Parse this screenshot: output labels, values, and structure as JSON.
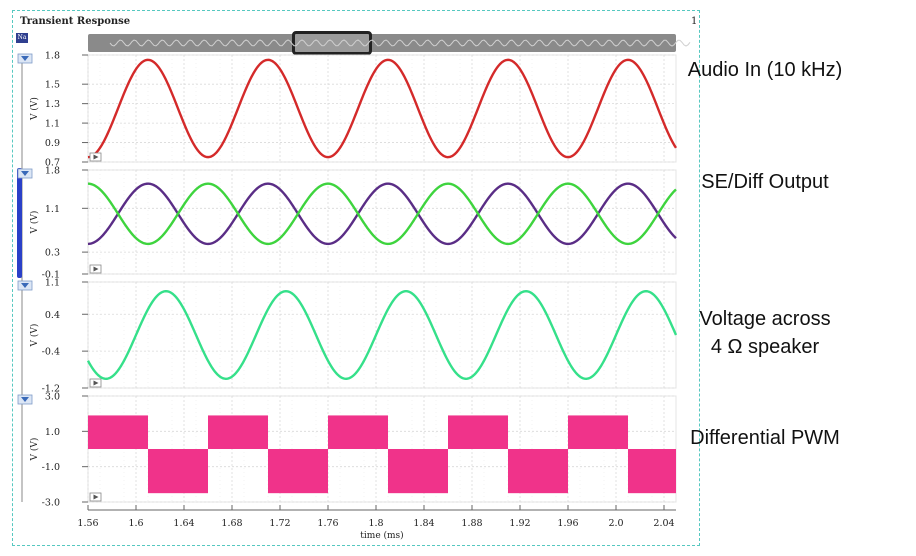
{
  "window": {
    "title": "Transient Response",
    "corner_label": "1",
    "signal_tag": "Na"
  },
  "colors": {
    "audio": "#d42a2a",
    "se_a": "#5a2d86",
    "se_b": "#3ed43e",
    "speaker": "#35e08a",
    "pwm": "#f0338a",
    "grid": "#d9d9d9",
    "scroll_thumb": "#2a40c8"
  },
  "labels": {
    "audio": "Audio In (10 kHz)",
    "se": "SE/Diff Output",
    "speaker_line1": "Voltage across",
    "speaker_line2": "4 Ω  speaker",
    "pwm": "Differential PWM"
  },
  "chart_data": [
    {
      "type": "line",
      "ylabel": "V (V)",
      "yticks": [
        "1.8",
        "1.5",
        "1.3",
        "1.1",
        "0.9",
        "0.7"
      ],
      "ylim": [
        0.7,
        1.8
      ],
      "series": [
        {
          "name": "Audio In (10 kHz)",
          "color_key": "audio",
          "offset": 1.25,
          "amplitude": 0.5,
          "period_ms": 0.1,
          "peak_ms": 1.61
        }
      ]
    },
    {
      "type": "line",
      "ylabel": "V (V)",
      "yticks": [
        "1.8",
        "1.1",
        "0.3",
        "-0.1"
      ],
      "ylim": [
        -0.1,
        1.8
      ],
      "series": [
        {
          "color_key": "se_a",
          "offset": 1.0,
          "amplitude": 0.55,
          "period_ms": 0.1,
          "peak_ms": 1.61
        },
        {
          "color_key": "se_b",
          "offset": 1.0,
          "amplitude": 0.55,
          "period_ms": 0.1,
          "peak_ms": 1.66
        }
      ]
    },
    {
      "type": "line",
      "ylabel": "V (V)",
      "yticks": [
        "1.1",
        "0.4",
        "-0.4",
        "-1.2"
      ],
      "ylim": [
        -1.2,
        1.1
      ],
      "series": [
        {
          "name": "Voltage across 4 Ω speaker",
          "color_key": "speaker",
          "offset": -0.05,
          "amplitude": 0.95,
          "period_ms": 0.1,
          "peak_ms": 1.625
        }
      ]
    },
    {
      "type": "area",
      "ylabel": "V (V)",
      "yticks": [
        "3.0",
        "1.0",
        "-1.0",
        "-3.0"
      ],
      "ylim": [
        -3.0,
        3.0
      ],
      "series": [
        {
          "name": "Differential PWM",
          "color_key": "pwm",
          "high": 1.9,
          "low": -2.5,
          "period_ms": 0.1,
          "positive_start_ms": 1.56,
          "positive_width_ms": 0.023
        }
      ]
    }
  ],
  "x_axis": {
    "label": "time (ms)",
    "range": [
      1.56,
      2.05
    ],
    "ticks": [
      "1.56",
      "1.6",
      "1.64",
      "1.68",
      "1.72",
      "1.76",
      "1.8",
      "1.84",
      "1.88",
      "1.92",
      "1.96",
      "2.0",
      "2.04"
    ]
  }
}
